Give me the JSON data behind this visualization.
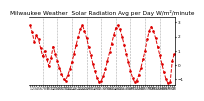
{
  "title": "Milwaukee Weather  Solar Radiation Avg per Day W/m²/minute",
  "title_fontsize": 4.2,
  "background_color": "#ffffff",
  "plot_bg_color": "#ffffff",
  "grid_color": "#aaaaaa",
  "line_color": "#dd0000",
  "y_ticks": [
    3,
    2,
    1,
    0,
    -1
  ],
  "ylim": [
    -1.4,
    3.4
  ],
  "values": [
    2.8,
    2.3,
    1.6,
    2.1,
    1.8,
    1.2,
    0.6,
    1.0,
    0.4,
    -0.1,
    0.5,
    1.3,
    0.8,
    0.3,
    -0.2,
    -0.6,
    -1.0,
    -1.1,
    -0.7,
    -0.3,
    0.2,
    0.8,
    1.4,
    2.0,
    2.5,
    2.8,
    2.4,
    1.9,
    1.3,
    0.7,
    0.1,
    -0.4,
    -0.9,
    -1.2,
    -1.1,
    -0.8,
    -0.3,
    0.3,
    0.9,
    1.5,
    2.1,
    2.6,
    2.8,
    2.5,
    2.0,
    1.4,
    0.8,
    0.2,
    -0.4,
    -0.9,
    -1.2,
    -1.1,
    -0.7,
    -0.2,
    0.4,
    1.0,
    1.8,
    2.4,
    2.7,
    2.4,
    1.9,
    1.3,
    0.7,
    0.1,
    -0.5,
    -1.0,
    -1.3,
    -1.2,
    0.3,
    0.8
  ],
  "vline_positions": [
    6,
    13,
    20,
    27,
    34,
    41,
    48,
    55,
    62
  ],
  "marker": "o",
  "marker_size": 0.9,
  "linewidth": 0.7,
  "linestyle": "--"
}
